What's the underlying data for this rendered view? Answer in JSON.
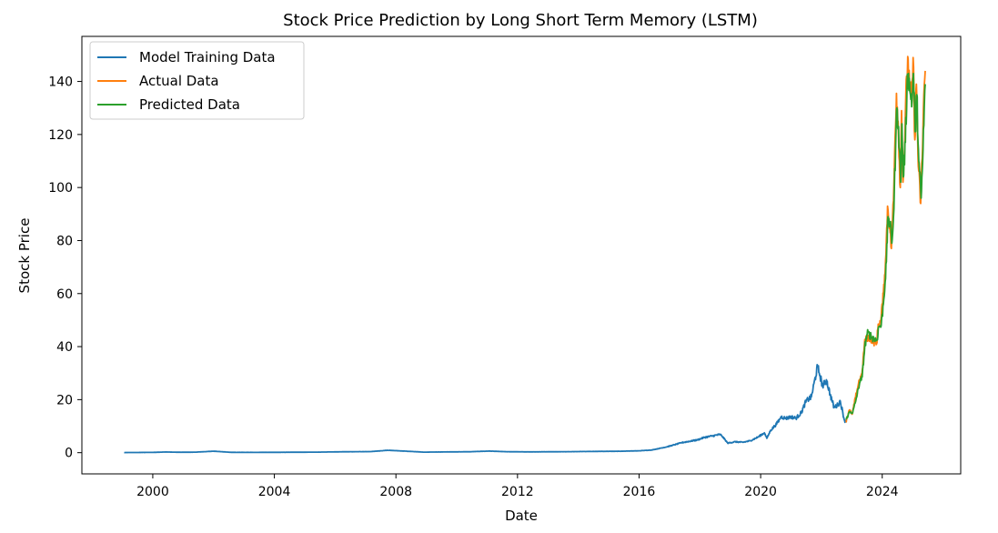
{
  "chart_data": {
    "type": "line",
    "title": "Stock Price Prediction by Long Short Term Memory (LSTM)",
    "xlabel": "Date",
    "ylabel": "Stock Price",
    "xlim": [
      "1997-09-01",
      "2026-08-01"
    ],
    "ylim": [
      -8,
      157
    ],
    "x_ticks": [
      "2000",
      "2004",
      "2008",
      "2012",
      "2016",
      "2020",
      "2024"
    ],
    "y_ticks": [
      0,
      20,
      40,
      60,
      80,
      100,
      120,
      140
    ],
    "grid": false,
    "legend": "upper-left",
    "series": [
      {
        "name": "Model Training Data",
        "color": "#1f77b4",
        "points": [
          [
            "1999-01-22",
            0.04
          ],
          [
            "2000-01-01",
            0.1
          ],
          [
            "2000-06-01",
            0.25
          ],
          [
            "2000-12-01",
            0.15
          ],
          [
            "2001-06-01",
            0.2
          ],
          [
            "2002-01-01",
            0.55
          ],
          [
            "2002-08-01",
            0.12
          ],
          [
            "2003-06-01",
            0.1
          ],
          [
            "2004-06-01",
            0.15
          ],
          [
            "2005-06-01",
            0.2
          ],
          [
            "2006-06-01",
            0.35
          ],
          [
            "2007-03-01",
            0.4
          ],
          [
            "2007-10-01",
            0.9
          ],
          [
            "2008-06-01",
            0.5
          ],
          [
            "2008-12-01",
            0.2
          ],
          [
            "2009-06-01",
            0.25
          ],
          [
            "2010-06-01",
            0.35
          ],
          [
            "2011-02-01",
            0.6
          ],
          [
            "2011-09-01",
            0.35
          ],
          [
            "2012-06-01",
            0.3
          ],
          [
            "2013-06-01",
            0.35
          ],
          [
            "2014-06-01",
            0.45
          ],
          [
            "2015-06-01",
            0.55
          ],
          [
            "2016-01-01",
            0.7
          ],
          [
            "2016-06-01",
            1.0
          ],
          [
            "2016-12-01",
            2.2
          ],
          [
            "2017-06-01",
            3.8
          ],
          [
            "2017-12-01",
            4.8
          ],
          [
            "2018-03-01",
            5.8
          ],
          [
            "2018-06-01",
            6.3
          ],
          [
            "2018-09-01",
            6.9
          ],
          [
            "2018-10-01",
            6.0
          ],
          [
            "2018-12-01",
            3.6
          ],
          [
            "2019-03-01",
            4.1
          ],
          [
            "2019-06-01",
            3.9
          ],
          [
            "2019-09-01",
            4.5
          ],
          [
            "2019-12-01",
            5.9
          ],
          [
            "2020-02-15",
            7.5
          ],
          [
            "2020-03-15",
            5.4
          ],
          [
            "2020-05-01",
            8.5
          ],
          [
            "2020-07-01",
            10.5
          ],
          [
            "2020-08-15",
            12.5
          ],
          [
            "2020-09-01",
            13.5
          ],
          [
            "2020-11-01",
            13.0
          ],
          [
            "2021-01-01",
            13.5
          ],
          [
            "2021-03-01",
            13.0
          ],
          [
            "2021-05-01",
            15.0
          ],
          [
            "2021-07-01",
            19.5
          ],
          [
            "2021-09-01",
            21.0
          ],
          [
            "2021-11-15",
            32.5
          ],
          [
            "2021-12-15",
            29.0
          ],
          [
            "2022-01-15",
            25.0
          ],
          [
            "2022-03-01",
            27.5
          ],
          [
            "2022-04-15",
            22.0
          ],
          [
            "2022-06-01",
            17.0
          ],
          [
            "2022-07-15",
            18.0
          ],
          [
            "2022-08-15",
            19.5
          ],
          [
            "2022-10-01",
            12.5
          ],
          [
            "2022-10-20",
            11.5
          ]
        ]
      },
      {
        "name": "Actual Data",
        "color": "#ff7f0e",
        "points": [
          [
            "2022-10-20",
            11.5
          ],
          [
            "2022-12-01",
            16.0
          ],
          [
            "2023-01-05",
            14.5
          ],
          [
            "2023-02-15",
            21.0
          ],
          [
            "2023-04-01",
            27.5
          ],
          [
            "2023-05-01",
            29.0
          ],
          [
            "2023-06-01",
            41.0
          ],
          [
            "2023-07-01",
            43.5
          ],
          [
            "2023-08-15",
            43.0
          ],
          [
            "2023-09-15",
            42.0
          ],
          [
            "2023-10-25",
            41.0
          ],
          [
            "2023-11-15",
            48.5
          ],
          [
            "2023-12-15",
            49.5
          ],
          [
            "2024-01-15",
            60.0
          ],
          [
            "2024-02-15",
            75.0
          ],
          [
            "2024-03-05",
            93.0
          ],
          [
            "2024-04-01",
            85.0
          ],
          [
            "2024-04-20",
            77.0
          ],
          [
            "2024-05-15",
            95.0
          ],
          [
            "2024-06-05",
            120.0
          ],
          [
            "2024-06-20",
            135.5
          ],
          [
            "2024-07-10",
            125.0
          ],
          [
            "2024-08-05",
            100.0
          ],
          [
            "2024-08-20",
            129.0
          ],
          [
            "2024-09-06",
            102.0
          ],
          [
            "2024-10-01",
            120.0
          ],
          [
            "2024-10-20",
            142.0
          ],
          [
            "2024-11-07",
            148.5
          ],
          [
            "2024-11-25",
            137.0
          ],
          [
            "2024-12-20",
            134.0
          ],
          [
            "2025-01-06",
            149.0
          ],
          [
            "2025-01-27",
            118.0
          ],
          [
            "2025-02-15",
            139.0
          ],
          [
            "2025-03-10",
            108.0
          ],
          [
            "2025-04-07",
            94.0
          ],
          [
            "2025-04-25",
            111.0
          ],
          [
            "2025-05-15",
            135.0
          ],
          [
            "2025-06-01",
            144.0
          ]
        ]
      },
      {
        "name": "Predicted Data",
        "color": "#2ca02c",
        "points": [
          [
            "2022-10-25",
            12.5
          ],
          [
            "2022-12-05",
            15.5
          ],
          [
            "2023-01-10",
            15.0
          ],
          [
            "2023-02-20",
            20.0
          ],
          [
            "2023-04-05",
            26.5
          ],
          [
            "2023-05-05",
            28.5
          ],
          [
            "2023-06-05",
            40.0
          ],
          [
            "2023-07-05",
            45.0
          ],
          [
            "2023-08-20",
            44.0
          ],
          [
            "2023-09-20",
            43.0
          ],
          [
            "2023-10-30",
            42.5
          ],
          [
            "2023-11-20",
            47.5
          ],
          [
            "2023-12-20",
            48.0
          ],
          [
            "2024-01-20",
            58.0
          ],
          [
            "2024-02-20",
            72.0
          ],
          [
            "2024-03-10",
            89.0
          ],
          [
            "2024-04-05",
            86.0
          ],
          [
            "2024-04-25",
            79.0
          ],
          [
            "2024-05-20",
            92.0
          ],
          [
            "2024-06-10",
            116.0
          ],
          [
            "2024-06-25",
            130.0
          ],
          [
            "2024-07-15",
            123.0
          ],
          [
            "2024-08-10",
            102.0
          ],
          [
            "2024-08-25",
            124.0
          ],
          [
            "2024-09-10",
            104.0
          ],
          [
            "2024-10-05",
            117.0
          ],
          [
            "2024-10-25",
            138.0
          ],
          [
            "2024-11-12",
            143.0
          ],
          [
            "2024-11-30",
            136.0
          ],
          [
            "2024-12-25",
            133.0
          ],
          [
            "2025-01-10",
            143.0
          ],
          [
            "2025-01-31",
            121.0
          ],
          [
            "2025-02-20",
            135.0
          ],
          [
            "2025-03-15",
            110.0
          ],
          [
            "2025-04-12",
            96.0
          ],
          [
            "2025-04-30",
            109.0
          ],
          [
            "2025-05-20",
            130.0
          ],
          [
            "2025-06-01",
            139.0
          ]
        ]
      }
    ]
  }
}
